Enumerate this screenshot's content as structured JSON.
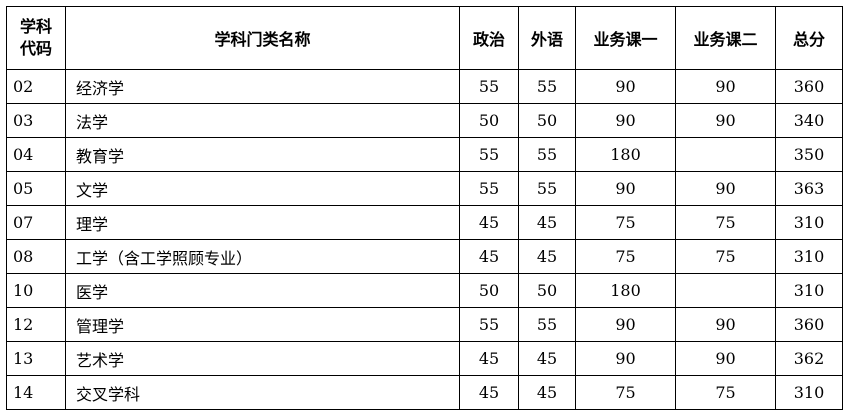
{
  "headers": {
    "code_line1": "学科",
    "code_line2": "代码",
    "name": "学科门类名称",
    "politics": "政治",
    "language": "外语",
    "course1": "业务课一",
    "course2": "业务课二",
    "total": "总分"
  },
  "rows": [
    {
      "code": "02",
      "name": "经济学",
      "politics": "55",
      "language": "55",
      "course1": "90",
      "course2": "90",
      "total": "360"
    },
    {
      "code": "03",
      "name": "法学",
      "politics": "50",
      "language": "50",
      "course1": "90",
      "course2": "90",
      "total": "340"
    },
    {
      "code": "04",
      "name": "教育学",
      "politics": "55",
      "language": "55",
      "course1": "180",
      "course2": "",
      "total": "350"
    },
    {
      "code": "05",
      "name": "文学",
      "politics": "55",
      "language": "55",
      "course1": "90",
      "course2": "90",
      "total": "363"
    },
    {
      "code": "07",
      "name": "理学",
      "politics": "45",
      "language": "45",
      "course1": "75",
      "course2": "75",
      "total": "310"
    },
    {
      "code": "08",
      "name": "工学（含工学照顾专业）",
      "politics": "45",
      "language": "45",
      "course1": "75",
      "course2": "75",
      "total": "310"
    },
    {
      "code": "10",
      "name": "医学",
      "politics": "50",
      "language": "50",
      "course1": "180",
      "course2": "",
      "total": "310"
    },
    {
      "code": "12",
      "name": "管理学",
      "politics": "55",
      "language": "55",
      "course1": "90",
      "course2": "90",
      "total": "360"
    },
    {
      "code": "13",
      "name": "艺术学",
      "politics": "45",
      "language": "45",
      "course1": "90",
      "course2": "90",
      "total": "362"
    },
    {
      "code": "14",
      "name": "交叉学科",
      "politics": "45",
      "language": "45",
      "course1": "75",
      "course2": "75",
      "total": "310"
    }
  ]
}
